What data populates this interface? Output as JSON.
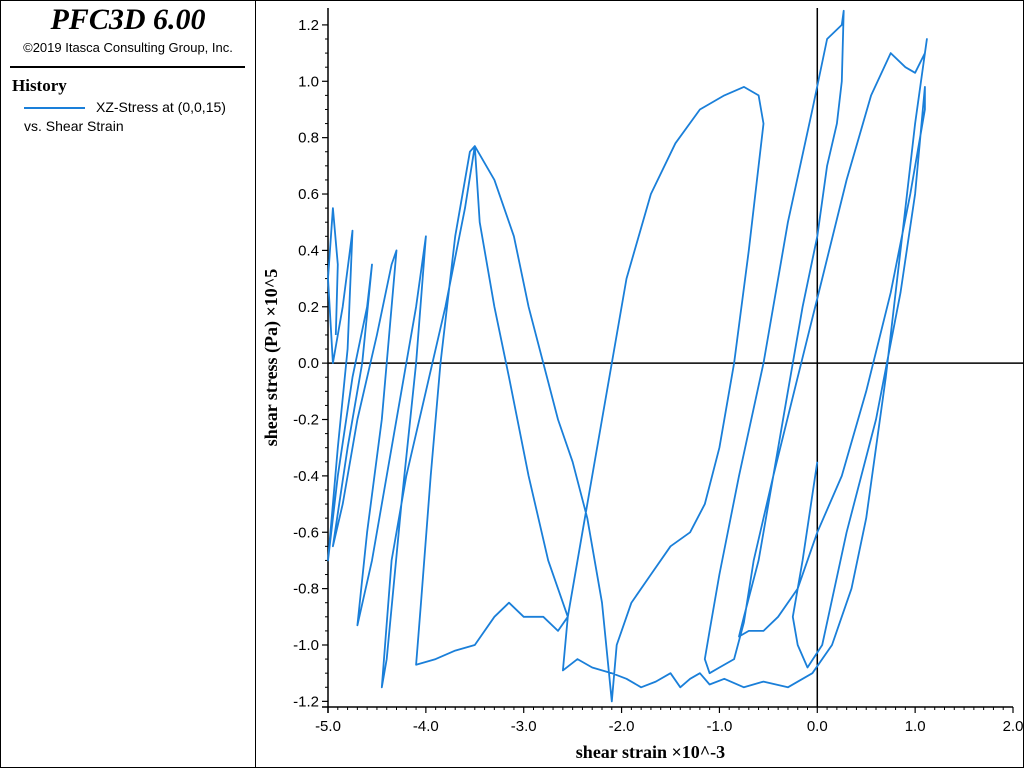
{
  "app": {
    "title": "PFC3D 6.00",
    "copyright": "©2019 Itasca Consulting Group, Inc."
  },
  "legend": {
    "heading": "History",
    "series_label_line1": "XZ-Stress at (0,0,15)",
    "series_label_line2": "vs. Shear Strain"
  },
  "colors": {
    "series": "#1a7fd9",
    "axes": "#000000"
  },
  "chart_data": {
    "type": "line",
    "title": "",
    "xlabel": "shear strain ×10^-3",
    "ylabel": "shear stress (Pa) ×10^5",
    "xlim": [
      -5.0,
      2.0
    ],
    "ylim": [
      -1.22,
      1.26
    ],
    "xticks": [
      -5.0,
      -4.0,
      -3.0,
      -2.0,
      -1.0,
      0.0,
      1.0,
      2.0
    ],
    "xtick_labels": [
      "-5.0",
      "-4.0",
      "-3.0",
      "-2.0",
      "-1.0",
      "0.0",
      "1.0",
      "2.0"
    ],
    "yticks": [
      -1.2,
      -1.0,
      -0.8,
      -0.6,
      -0.4,
      -0.2,
      0.0,
      0.2,
      0.4,
      0.6,
      0.8,
      1.0,
      1.2
    ],
    "ytick_labels": [
      "-1.2",
      "-1.0",
      "-0.8",
      "-0.6",
      "-0.4",
      "-0.2",
      "0.0",
      "0.2",
      "0.4",
      "0.6",
      "0.8",
      "1.0",
      "1.2"
    ],
    "series": [
      {
        "name": "XZ-Stress at (0,0,15) vs. Shear Strain",
        "x": [
          0.0,
          -0.15,
          -0.25,
          -0.2,
          -0.1,
          0.05,
          0.3,
          0.6,
          0.85,
          1.0,
          1.1,
          1.1,
          0.95,
          0.75,
          0.5,
          0.25,
          0.0,
          -0.2,
          -0.4,
          -0.55,
          -0.7,
          -0.8,
          -0.75,
          -0.6,
          -0.45,
          -0.3,
          -0.15,
          0.0,
          0.1,
          0.2,
          0.25,
          0.27,
          0.25,
          0.1,
          -0.05,
          -0.3,
          -0.55,
          -0.8,
          -1.0,
          -1.1,
          -1.15,
          -1.1,
          -1.0,
          -0.85,
          -0.75,
          -0.65,
          -0.45,
          -0.2,
          0.05,
          0.3,
          0.55,
          0.75,
          0.9,
          1.0,
          1.1,
          1.12,
          1.0,
          0.9,
          0.8,
          0.7,
          0.6,
          0.5,
          0.35,
          0.15,
          -0.05,
          -0.3,
          -0.55,
          -0.75,
          -0.95,
          -1.1,
          -1.2,
          -1.3,
          -1.4,
          -1.5,
          -1.65,
          -1.8,
          -1.95,
          -2.1,
          -2.3,
          -2.45,
          -2.6,
          -2.55,
          -2.4,
          -2.2,
          -1.95,
          -1.7,
          -1.45,
          -1.2,
          -0.95,
          -0.75,
          -0.6,
          -0.55,
          -0.6,
          -0.7,
          -0.85,
          -1.0,
          -1.15,
          -1.3,
          -1.5,
          -1.7,
          -1.9,
          -2.0,
          -2.05,
          -2.1,
          -2.2,
          -2.35,
          -2.5,
          -2.65,
          -2.8,
          -2.95,
          -3.1,
          -3.3,
          -3.5,
          -3.45,
          -3.3,
          -3.15,
          -2.95,
          -2.75,
          -2.6,
          -2.55,
          -2.65,
          -2.8,
          -3.0,
          -3.15,
          -3.3,
          -3.5,
          -3.7,
          -3.9,
          -4.1,
          -4.05,
          -3.95,
          -3.85,
          -3.7,
          -3.55,
          -3.5,
          -3.6,
          -3.8,
          -4.0,
          -4.2,
          -4.35,
          -4.45,
          -4.4,
          -4.25,
          -4.1,
          -4.0,
          -4.1,
          -4.25,
          -4.4,
          -4.55,
          -4.7,
          -4.6,
          -4.45,
          -4.3,
          -4.35,
          -4.5,
          -4.7,
          -4.85,
          -4.95,
          -4.8,
          -4.65,
          -4.55,
          -4.6,
          -4.75,
          -4.9,
          -5.0,
          -4.9,
          -4.8,
          -4.75,
          -4.85,
          -4.95,
          -5.0,
          -4.95,
          -4.9,
          -4.92
        ],
        "y": [
          -0.35,
          -0.7,
          -0.9,
          -1.0,
          -1.08,
          -1.0,
          -0.6,
          -0.2,
          0.25,
          0.6,
          0.98,
          0.9,
          0.6,
          0.25,
          -0.1,
          -0.4,
          -0.6,
          -0.8,
          -0.9,
          -0.95,
          -0.95,
          -0.97,
          -0.9,
          -0.7,
          -0.4,
          -0.1,
          0.2,
          0.45,
          0.7,
          0.85,
          1.0,
          1.25,
          1.2,
          1.15,
          0.9,
          0.5,
          0.0,
          -0.4,
          -0.75,
          -0.95,
          -1.05,
          -1.1,
          -1.08,
          -1.05,
          -0.92,
          -0.7,
          -0.4,
          -0.05,
          0.3,
          0.65,
          0.95,
          1.1,
          1.05,
          1.03,
          1.1,
          1.15,
          0.85,
          0.55,
          0.25,
          -0.05,
          -0.3,
          -0.55,
          -0.8,
          -1.0,
          -1.1,
          -1.15,
          -1.13,
          -1.15,
          -1.12,
          -1.14,
          -1.1,
          -1.12,
          -1.15,
          -1.1,
          -1.13,
          -1.15,
          -1.12,
          -1.1,
          -1.08,
          -1.05,
          -1.09,
          -0.9,
          -0.6,
          -0.2,
          0.3,
          0.6,
          0.78,
          0.9,
          0.95,
          0.98,
          0.95,
          0.85,
          0.7,
          0.4,
          0.0,
          -0.3,
          -0.5,
          -0.6,
          -0.65,
          -0.75,
          -0.85,
          -0.95,
          -1.0,
          -1.2,
          -0.85,
          -0.55,
          -0.35,
          -0.2,
          0.0,
          0.2,
          0.45,
          0.65,
          0.77,
          0.5,
          0.2,
          -0.05,
          -0.4,
          -0.7,
          -0.85,
          -0.9,
          -0.95,
          -0.9,
          -0.9,
          -0.85,
          -0.9,
          -1.0,
          -1.02,
          -1.05,
          -1.07,
          -0.85,
          -0.4,
          0.0,
          0.45,
          0.75,
          0.77,
          0.55,
          0.2,
          -0.1,
          -0.4,
          -0.7,
          -1.15,
          -1.05,
          -0.5,
          0.0,
          0.45,
          0.2,
          -0.1,
          -0.4,
          -0.7,
          -0.93,
          -0.6,
          -0.2,
          0.4,
          0.35,
          0.1,
          -0.2,
          -0.5,
          -0.65,
          -0.3,
          0.0,
          0.35,
          0.2,
          -0.05,
          -0.4,
          -0.7,
          -0.3,
          0.05,
          0.47,
          0.2,
          0.0,
          0.3,
          0.55,
          0.35,
          0.1
        ]
      }
    ]
  }
}
